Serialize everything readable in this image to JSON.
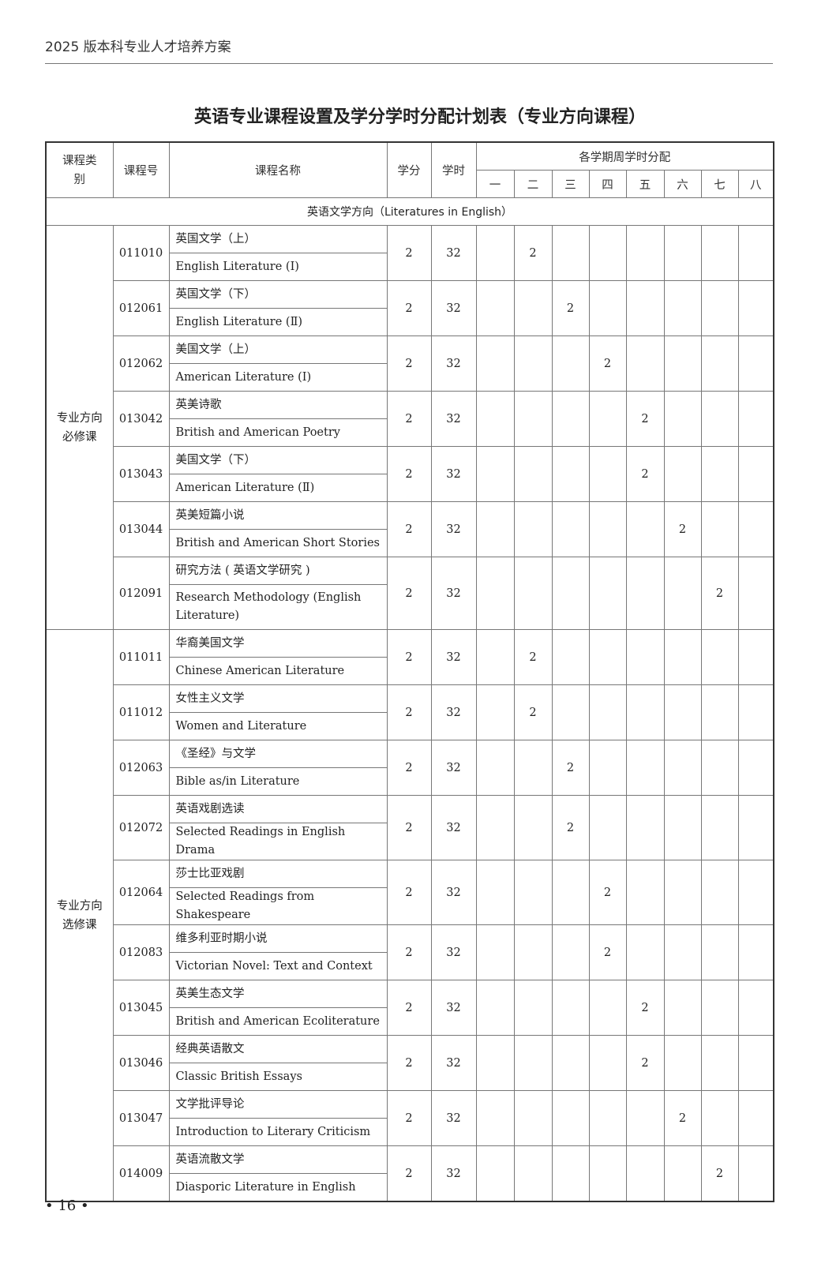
{
  "running_head": "2025 版本科专业人才培养方案",
  "title": "英语专业课程设置及学分学时分配计划表（专业方向课程）",
  "headers": {
    "category": "课程类别",
    "code": "课程号",
    "name": "课程名称",
    "credits": "学分",
    "hours": "学时",
    "semester_group": "各学期周学时分配",
    "semesters": [
      "一",
      "二",
      "三",
      "四",
      "五",
      "六",
      "七",
      "八"
    ]
  },
  "section": "英语文学方向（Literatures in English）",
  "groups": [
    {
      "category": "专业方向必修课",
      "courses": [
        {
          "code": "011010",
          "cn": "英国文学（上）",
          "en": "English Literature (Ⅰ)",
          "credits": "2",
          "hours": "32",
          "semester": 2,
          "weekly": "2"
        },
        {
          "code": "012061",
          "cn": "英国文学（下）",
          "en": "English Literature (Ⅱ)",
          "credits": "2",
          "hours": "32",
          "semester": 3,
          "weekly": "2"
        },
        {
          "code": "012062",
          "cn": "美国文学（上）",
          "en": "American Literature (Ⅰ)",
          "credits": "2",
          "hours": "32",
          "semester": 4,
          "weekly": "2"
        },
        {
          "code": "013042",
          "cn": "英美诗歌",
          "en": "British and American Poetry",
          "credits": "2",
          "hours": "32",
          "semester": 5,
          "weekly": "2"
        },
        {
          "code": "013043",
          "cn": "美国文学（下）",
          "en": "American Literature (Ⅱ)",
          "credits": "2",
          "hours": "32",
          "semester": 5,
          "weekly": "2"
        },
        {
          "code": "013044",
          "cn": "英美短篇小说",
          "en": "British and American Short Stories",
          "credits": "2",
          "hours": "32",
          "semester": 6,
          "weekly": "2"
        },
        {
          "code": "012091",
          "cn": "研究方法 ( 英语文学研究 )",
          "en": "Research Methodology (English Literature)",
          "credits": "2",
          "hours": "32",
          "semester": 7,
          "weekly": "2"
        }
      ]
    },
    {
      "category": "专业方向选修课",
      "courses": [
        {
          "code": "011011",
          "cn": "华裔美国文学",
          "en": "Chinese American Literature",
          "credits": "2",
          "hours": "32",
          "semester": 2,
          "weekly": "2"
        },
        {
          "code": "011012",
          "cn": "女性主义文学",
          "en": "Women and Literature",
          "credits": "2",
          "hours": "32",
          "semester": 2,
          "weekly": "2"
        },
        {
          "code": "012063",
          "cn": "《圣经》与文学",
          "en": "Bible as/in Literature",
          "credits": "2",
          "hours": "32",
          "semester": 3,
          "weekly": "2"
        },
        {
          "code": "012072",
          "cn": "英语戏剧选读",
          "en": "Selected Readings in English Drama",
          "credits": "2",
          "hours": "32",
          "semester": 3,
          "weekly": "2"
        },
        {
          "code": "012064",
          "cn": "莎士比亚戏剧",
          "en": "Selected Readings from Shakespeare",
          "credits": "2",
          "hours": "32",
          "semester": 4,
          "weekly": "2"
        },
        {
          "code": "012083",
          "cn": "维多利亚时期小说",
          "en": "Victorian Novel: Text and Context",
          "credits": "2",
          "hours": "32",
          "semester": 4,
          "weekly": "2"
        },
        {
          "code": "013045",
          "cn": "英美生态文学",
          "en": "British and American Ecoliterature",
          "credits": "2",
          "hours": "32",
          "semester": 5,
          "weekly": "2"
        },
        {
          "code": "013046",
          "cn": "经典英语散文",
          "en": "Classic British Essays",
          "credits": "2",
          "hours": "32",
          "semester": 5,
          "weekly": "2"
        },
        {
          "code": "013047",
          "cn": "文学批评导论",
          "en": "Introduction to Literary Criticism",
          "credits": "2",
          "hours": "32",
          "semester": 6,
          "weekly": "2"
        },
        {
          "code": "014009",
          "cn": "英语流散文学",
          "en": "Diasporic Literature in English",
          "credits": "2",
          "hours": "32",
          "semester": 7,
          "weekly": "2"
        }
      ]
    }
  ],
  "page_number": "• 16 •"
}
